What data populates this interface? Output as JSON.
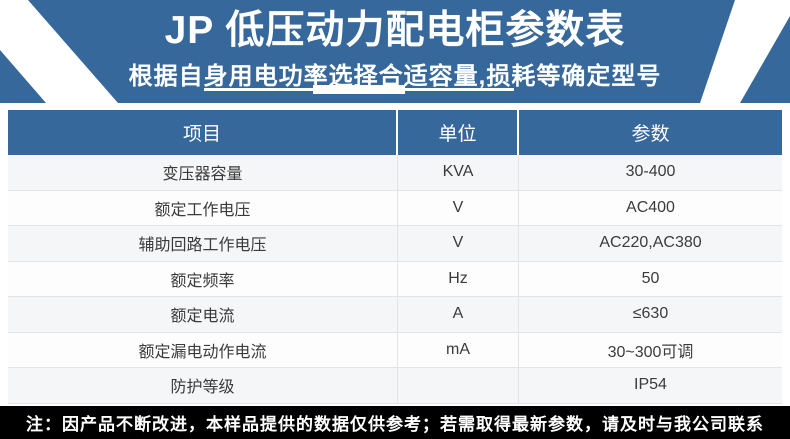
{
  "header": {
    "title": "JP 低压动力配电柜参数表",
    "subtitle": "根据自身用电功率选择合适容量,损耗等确定型号"
  },
  "table": {
    "columns": [
      "项目",
      "单位",
      "参数"
    ],
    "rows": [
      {
        "item": "变压器容量",
        "unit": "KVA",
        "value": "30-400"
      },
      {
        "item": "额定工作电压",
        "unit": "V",
        "value": "AC400"
      },
      {
        "item": "辅助回路工作电压",
        "unit": "V",
        "value": "AC220,AC380"
      },
      {
        "item": "额定频率",
        "unit": "Hz",
        "value": "50"
      },
      {
        "item": "额定电流",
        "unit": "A",
        "value": "≤630"
      },
      {
        "item": "额定漏电动作电流",
        "unit": "mA",
        "value": "30~300可调"
      },
      {
        "item": "防护等级",
        "unit": "",
        "value": "IP54"
      }
    ]
  },
  "note": {
    "text": "注：因产品不断改进，本样品提供的数据仅供参考；若需取得最新参数，请及时与我公司联系"
  },
  "colors": {
    "primary_blue": "#36689C",
    "note_bar": "#000000",
    "body_text": "#3b3b3b"
  }
}
